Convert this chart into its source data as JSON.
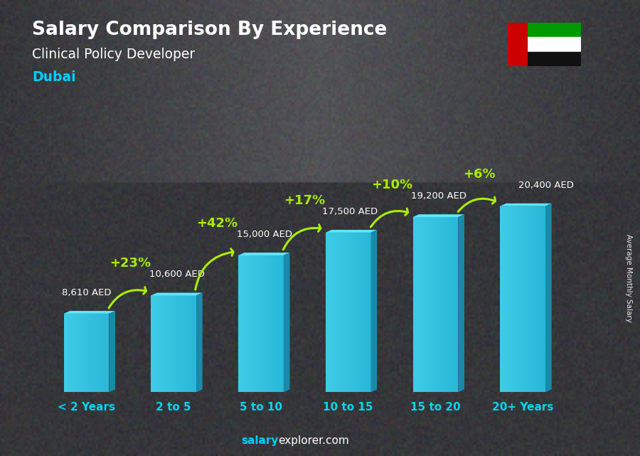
{
  "title": "Salary Comparison By Experience",
  "subtitle": "Clinical Policy Developer",
  "city": "Dubai",
  "categories": [
    "< 2 Years",
    "2 to 5",
    "5 to 10",
    "10 to 15",
    "15 to 20",
    "20+ Years"
  ],
  "values": [
    8610,
    10600,
    15000,
    17500,
    19200,
    20400
  ],
  "labels": [
    "8,610 AED",
    "10,600 AED",
    "15,000 AED",
    "17,500 AED",
    "19,200 AED",
    "20,400 AED"
  ],
  "pct_changes": [
    "+23%",
    "+42%",
    "+17%",
    "+10%",
    "+6%"
  ],
  "bar_color_face": "#29b8d8",
  "bar_color_light": "#4dd8f0",
  "bar_color_dark": "#1a8aaa",
  "bar_color_top": "#5de8ff",
  "bg_color": "#3a3d42",
  "title_color": "#ffffff",
  "subtitle_color": "#ffffff",
  "city_color": "#00cfff",
  "label_color": "#ffffff",
  "pct_color": "#aaee00",
  "arrow_color": "#aaee00",
  "cat_color": "#00d8f0",
  "footer_salary_color": "#00cfff",
  "footer_explorer_color": "#ffffff",
  "ylabel": "Average Monthly Salary",
  "ylim": [
    0,
    25000
  ],
  "bar_width": 0.52
}
